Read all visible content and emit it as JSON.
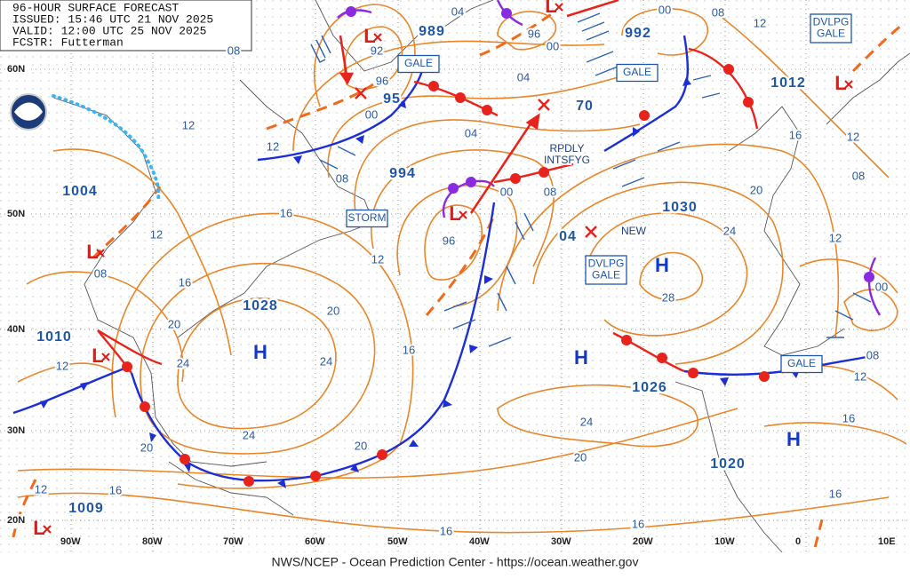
{
  "header": {
    "title": "96-HOUR SURFACE FORECAST",
    "issued": "ISSUED: 15:46 UTC 21 NOV 2025",
    "valid": "VALID: 12:00 UTC 25 NOV 2025",
    "forecaster": "FCSTR: Futterman"
  },
  "latitude_labels": [
    "60N",
    "50N",
    "40N",
    "30N",
    "20N"
  ],
  "longitude_labels": [
    "90W",
    "80W",
    "70W",
    "60W",
    "50W",
    "40W",
    "30W",
    "20W",
    "10W",
    "0",
    "10E"
  ],
  "pressure_centers": [
    "989",
    "992",
    "1012",
    "1004",
    "994",
    "95",
    "70",
    "1030",
    "04",
    "1028",
    "1010",
    "1026",
    "1020",
    "1009"
  ],
  "symbols": {
    "high": "H",
    "low": "L"
  },
  "boxed_labels": [
    [
      "GALE"
    ],
    [
      "GALE"
    ],
    [
      "STORM"
    ],
    [
      "DVLPG",
      "GALE"
    ],
    [
      "GALE"
    ],
    [
      "DVLPG",
      "GALE"
    ]
  ],
  "annotations": [
    "RPDLY",
    "INTSFYG",
    "NEW"
  ],
  "isobar_labels": [
    "08",
    "12",
    "12",
    "08",
    "16",
    "12",
    "16",
    "08",
    "20",
    "24",
    "12",
    "20",
    "24",
    "16",
    "24",
    "20",
    "20",
    "16",
    "12",
    "16",
    "16",
    "20",
    "24",
    "28",
    "24",
    "20",
    "16",
    "12",
    "08",
    "12",
    "12",
    "08",
    "00",
    "04",
    "96",
    "00",
    "04",
    "04",
    "00",
    "08",
    "96",
    "12",
    "00",
    "96",
    "92",
    "08",
    "12",
    "16",
    "16",
    "00"
  ],
  "footer": "NWS/NCEP - Ocean Prediction Center - https://ocean.weather.gov"
}
